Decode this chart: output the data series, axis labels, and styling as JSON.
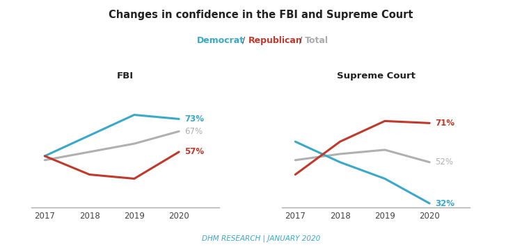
{
  "title": "Changes in confidence in the FBI and Supreme Court",
  "subtitle_parts": [
    "Democrat",
    " / ",
    "Republican",
    " / ",
    "Total"
  ],
  "subtitle_colors": [
    "#3aa8c8",
    "#444444",
    "#c0392b",
    "#444444",
    "#aaaaaa"
  ],
  "years": [
    2017,
    2018,
    2019,
    2020
  ],
  "fbi": {
    "title": "FBI",
    "democrat": [
      55,
      65,
      75,
      73
    ],
    "republican": [
      55,
      46,
      44,
      57
    ],
    "total": [
      53,
      57,
      61,
      67
    ],
    "end_labels": {
      "democrat": "73%",
      "republican": "57%",
      "total": "67%"
    }
  },
  "supreme": {
    "title": "Supreme Court",
    "democrat": [
      62,
      52,
      44,
      32
    ],
    "republican": [
      46,
      62,
      72,
      71
    ],
    "total": [
      53,
      56,
      58,
      52
    ],
    "end_labels": {
      "democrat": "32%",
      "republican": "71%",
      "total": "52%"
    }
  },
  "democrat_color": "#3aa8c8",
  "republican_color": "#c0392b",
  "total_color": "#b0b0b0",
  "footer": "DHM RESEARCH | JANUARY 2020",
  "background_color": "#ffffff",
  "line_width": 2.2,
  "ylim": [
    30,
    90
  ]
}
